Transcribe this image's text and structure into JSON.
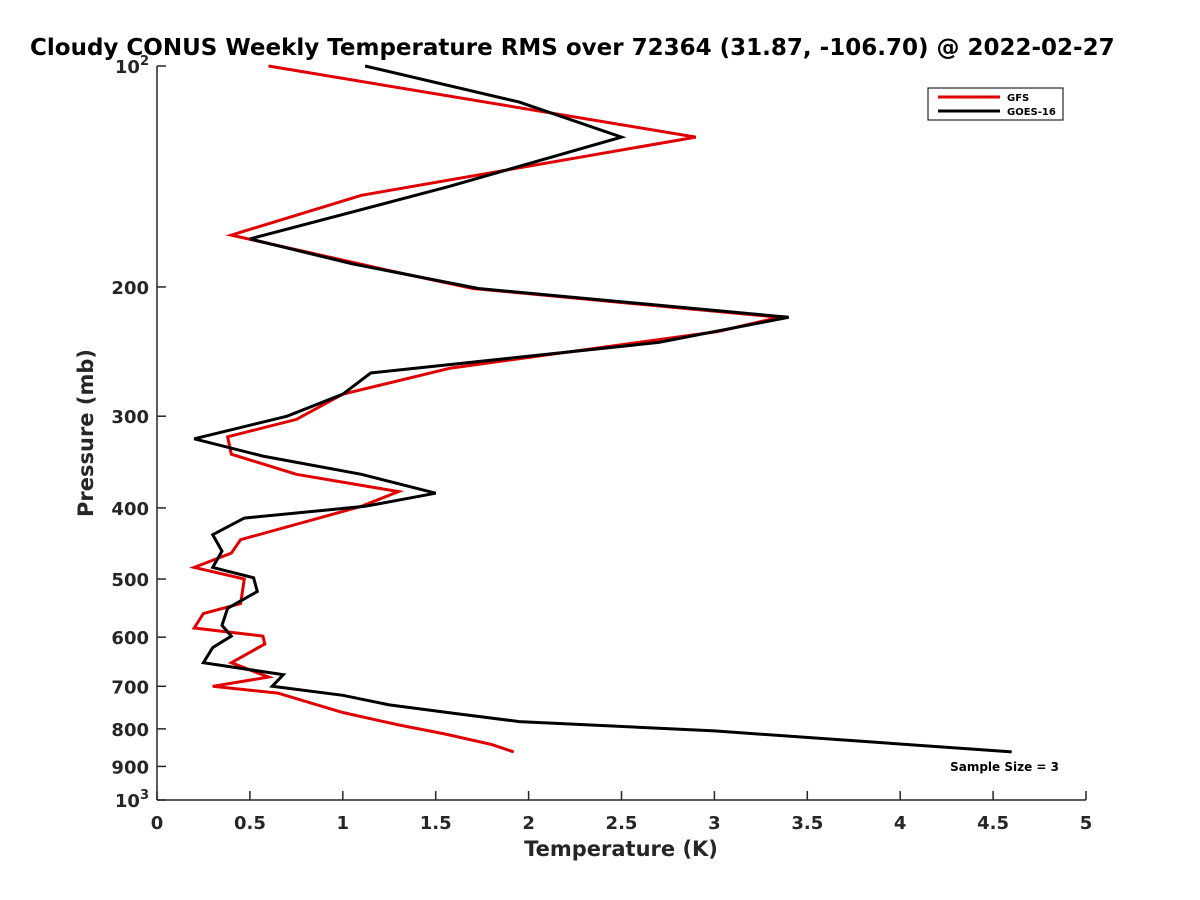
{
  "chart_data": {
    "type": "line",
    "title": "Cloudy CONUS Weekly Temperature RMS over 72364 (31.87, -106.70) @ 2022-02-27",
    "xlabel": "Temperature (K)",
    "ylabel": "Pressure (mb)",
    "xlim": [
      0,
      5
    ],
    "ylim": [
      100,
      1000
    ],
    "y_scale": "log",
    "y_reversed": true,
    "grid": false,
    "legend_position": "top-right",
    "x_ticks": [
      "0",
      "0.5",
      "1",
      "1.5",
      "2",
      "2.5",
      "3",
      "3.5",
      "4",
      "4.5",
      "5"
    ],
    "y_ticks": [
      {
        "value": 100,
        "base": "10",
        "exp": "2"
      },
      {
        "value": 200,
        "label": "200"
      },
      {
        "value": 300,
        "label": "300"
      },
      {
        "value": 400,
        "label": "400"
      },
      {
        "value": 500,
        "label": "500"
      },
      {
        "value": 600,
        "label": "600"
      },
      {
        "value": 700,
        "label": "700"
      },
      {
        "value": 800,
        "label": "800"
      },
      {
        "value": 900,
        "label": "900"
      },
      {
        "value": 1000,
        "base": "10",
        "exp": "3"
      }
    ],
    "series": [
      {
        "name": "GFS",
        "color": "#e00000",
        "points": [
          [
            0.6,
            100
          ],
          [
            2.9,
            125
          ],
          [
            1.1,
            150
          ],
          [
            0.4,
            170
          ],
          [
            1.25,
            190
          ],
          [
            1.7,
            201
          ],
          [
            3.35,
            220
          ],
          [
            3.02,
            230
          ],
          [
            1.58,
            258
          ],
          [
            1.0,
            280
          ],
          [
            0.75,
            303
          ],
          [
            0.38,
            320
          ],
          [
            0.4,
            338
          ],
          [
            0.75,
            360
          ],
          [
            1.3,
            380
          ],
          [
            1.1,
            398
          ],
          [
            0.45,
            442
          ],
          [
            0.4,
            461
          ],
          [
            0.2,
            482
          ],
          [
            0.47,
            500
          ],
          [
            0.45,
            540
          ],
          [
            0.25,
            557
          ],
          [
            0.2,
            583
          ],
          [
            0.57,
            598
          ],
          [
            0.58,
            613
          ],
          [
            0.4,
            650
          ],
          [
            0.6,
            680
          ],
          [
            0.3,
            700
          ],
          [
            0.65,
            715
          ],
          [
            1.0,
            760
          ],
          [
            1.3,
            790
          ],
          [
            1.55,
            813
          ],
          [
            1.8,
            840
          ],
          [
            1.92,
            860
          ]
        ]
      },
      {
        "name": "GOES-16",
        "color": "#000000",
        "points": [
          [
            1.12,
            100
          ],
          [
            1.95,
            112
          ],
          [
            2.5,
            125
          ],
          [
            1.57,
            146
          ],
          [
            0.5,
            172
          ],
          [
            1.05,
            186
          ],
          [
            1.73,
            201
          ],
          [
            3.4,
            220
          ],
          [
            2.7,
            238
          ],
          [
            1.15,
            262
          ],
          [
            1.0,
            280
          ],
          [
            0.7,
            300
          ],
          [
            0.2,
            322
          ],
          [
            0.57,
            340
          ],
          [
            1.1,
            360
          ],
          [
            1.5,
            382
          ],
          [
            1.12,
            398
          ],
          [
            0.47,
            413
          ],
          [
            0.3,
            435
          ],
          [
            0.35,
            458
          ],
          [
            0.3,
            482
          ],
          [
            0.52,
            498
          ],
          [
            0.54,
            520
          ],
          [
            0.38,
            548
          ],
          [
            0.35,
            578
          ],
          [
            0.4,
            598
          ],
          [
            0.3,
            620
          ],
          [
            0.25,
            650
          ],
          [
            0.68,
            675
          ],
          [
            0.62,
            700
          ],
          [
            1.0,
            720
          ],
          [
            1.25,
            742
          ],
          [
            1.6,
            762
          ],
          [
            1.95,
            782
          ],
          [
            3.0,
            805
          ],
          [
            4.6,
            860
          ]
        ]
      }
    ],
    "annotations": [
      {
        "text": "Sample Size = 3"
      }
    ]
  }
}
